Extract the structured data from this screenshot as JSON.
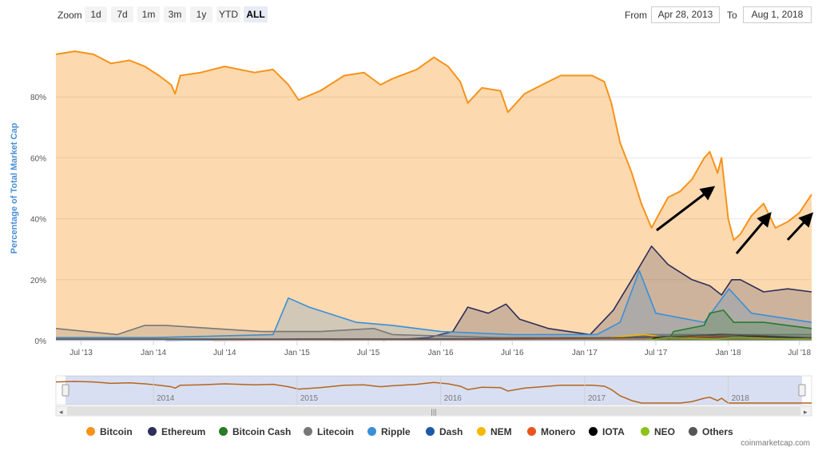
{
  "toolbar": {
    "zoom_label": "Zoom",
    "zoom_buttons": [
      "1d",
      "7d",
      "1m",
      "3m",
      "1y",
      "YTD",
      "ALL"
    ],
    "active_zoom": "ALL",
    "from_label": "From",
    "from_value": "Apr 28, 2013",
    "to_label": "To",
    "to_value": "Aug 1, 2018"
  },
  "credits": "coinmarketcap.com",
  "colors": {
    "Bitcoin": "#f7931a",
    "Ethereum": "#2e2e5a",
    "Bitcoin Cash": "#2a7a2a",
    "Litecoin": "#777777",
    "Ripple": "#3a8fd6",
    "Dash": "#1c5aa6",
    "NEM": "#f5b800",
    "Monero": "#e8541c",
    "IOTA": "#000000",
    "NEO": "#8ac41a",
    "Others": "#555555"
  },
  "chart_data": {
    "type": "area",
    "title": "",
    "xlabel": "",
    "ylabel": "Percentage of Total Market Cap",
    "ylim": [
      0,
      100
    ],
    "y_ticks": [
      "0%",
      "20%",
      "40%",
      "60%",
      "80%"
    ],
    "x_ticks": [
      "Jul '13",
      "Jan '14",
      "Jul '14",
      "Jan '15",
      "Jul '15",
      "Jan '16",
      "Jul '16",
      "Jan '17",
      "Jul '17",
      "Jan '18",
      "Jul '18"
    ],
    "x_range": [
      "2013-04-28",
      "2018-08-01"
    ],
    "grid": true,
    "legend_position": "bottom",
    "series": [
      {
        "name": "Bitcoin",
        "points": [
          [
            "2013-04-28",
            94
          ],
          [
            "2013-06-15",
            95
          ],
          [
            "2013-08-01",
            94
          ],
          [
            "2013-09-15",
            91
          ],
          [
            "2013-11-01",
            92
          ],
          [
            "2013-12-10",
            90
          ],
          [
            "2014-01-15",
            87
          ],
          [
            "2014-02-15",
            84
          ],
          [
            "2014-02-25",
            81
          ],
          [
            "2014-03-10",
            87
          ],
          [
            "2014-05-01",
            88
          ],
          [
            "2014-07-01",
            90
          ],
          [
            "2014-09-15",
            88
          ],
          [
            "2014-11-01",
            89
          ],
          [
            "2014-12-10",
            84
          ],
          [
            "2015-01-05",
            79
          ],
          [
            "2015-03-01",
            82
          ],
          [
            "2015-05-01",
            87
          ],
          [
            "2015-06-20",
            88
          ],
          [
            "2015-08-01",
            84
          ],
          [
            "2015-09-01",
            86
          ],
          [
            "2015-11-01",
            89
          ],
          [
            "2015-12-15",
            93
          ],
          [
            "2016-01-20",
            90
          ],
          [
            "2016-02-20",
            85
          ],
          [
            "2016-03-10",
            78
          ],
          [
            "2016-04-15",
            83
          ],
          [
            "2016-06-01",
            82
          ],
          [
            "2016-06-20",
            75
          ],
          [
            "2016-08-01",
            81
          ],
          [
            "2016-09-15",
            84
          ],
          [
            "2016-11-01",
            87
          ],
          [
            "2016-12-15",
            87
          ],
          [
            "2017-01-20",
            87
          ],
          [
            "2017-02-20",
            85
          ],
          [
            "2017-03-10",
            78
          ],
          [
            "2017-04-01",
            65
          ],
          [
            "2017-05-01",
            55
          ],
          [
            "2017-05-25",
            45
          ],
          [
            "2017-06-20",
            37
          ],
          [
            "2017-07-15",
            43
          ],
          [
            "2017-08-01",
            47
          ],
          [
            "2017-09-01",
            49
          ],
          [
            "2017-10-01",
            53
          ],
          [
            "2017-11-01",
            60
          ],
          [
            "2017-11-15",
            62
          ],
          [
            "2017-12-05",
            55
          ],
          [
            "2017-12-15",
            60
          ],
          [
            "2018-01-01",
            40
          ],
          [
            "2018-01-15",
            33
          ],
          [
            "2018-02-01",
            35
          ],
          [
            "2018-03-01",
            41
          ],
          [
            "2018-04-01",
            45
          ],
          [
            "2018-05-01",
            37
          ],
          [
            "2018-06-01",
            39
          ],
          [
            "2018-07-01",
            42
          ],
          [
            "2018-08-01",
            48
          ]
        ]
      },
      {
        "name": "Ethereum",
        "points": [
          [
            "2015-08-07",
            0
          ],
          [
            "2015-12-01",
            1
          ],
          [
            "2016-02-01",
            3
          ],
          [
            "2016-03-10",
            11
          ],
          [
            "2016-05-01",
            9
          ],
          [
            "2016-06-15",
            12
          ],
          [
            "2016-07-20",
            7
          ],
          [
            "2016-10-01",
            4
          ],
          [
            "2017-01-15",
            2
          ],
          [
            "2017-03-15",
            10
          ],
          [
            "2017-05-01",
            20
          ],
          [
            "2017-06-20",
            31
          ],
          [
            "2017-08-01",
            25
          ],
          [
            "2017-10-01",
            20
          ],
          [
            "2017-11-15",
            18
          ],
          [
            "2017-12-15",
            15
          ],
          [
            "2018-01-10",
            20
          ],
          [
            "2018-02-01",
            20
          ],
          [
            "2018-04-01",
            16
          ],
          [
            "2018-06-01",
            17
          ],
          [
            "2018-08-01",
            16
          ]
        ]
      },
      {
        "name": "Ripple",
        "points": [
          [
            "2013-04-28",
            1
          ],
          [
            "2014-01-01",
            1
          ],
          [
            "2014-11-01",
            2
          ],
          [
            "2014-12-10",
            14
          ],
          [
            "2015-02-01",
            11
          ],
          [
            "2015-06-01",
            6
          ],
          [
            "2015-09-01",
            5
          ],
          [
            "2016-01-01",
            3
          ],
          [
            "2016-07-01",
            2
          ],
          [
            "2017-02-01",
            2
          ],
          [
            "2017-04-01",
            6
          ],
          [
            "2017-05-20",
            23
          ],
          [
            "2017-07-01",
            9
          ],
          [
            "2017-11-01",
            6
          ],
          [
            "2018-01-03",
            17
          ],
          [
            "2018-03-01",
            9
          ],
          [
            "2018-08-01",
            6
          ]
        ]
      },
      {
        "name": "Litecoin",
        "points": [
          [
            "2013-04-28",
            4
          ],
          [
            "2013-10-01",
            2
          ],
          [
            "2013-12-10",
            5
          ],
          [
            "2014-02-01",
            5
          ],
          [
            "2014-06-01",
            4
          ],
          [
            "2014-10-01",
            3
          ],
          [
            "2015-03-01",
            3
          ],
          [
            "2015-07-15",
            4
          ],
          [
            "2015-09-01",
            2
          ],
          [
            "2016-06-01",
            1
          ],
          [
            "2017-04-01",
            1
          ],
          [
            "2017-06-01",
            2
          ],
          [
            "2017-12-15",
            2
          ],
          [
            "2018-08-01",
            2
          ]
        ]
      },
      {
        "name": "Bitcoin Cash",
        "points": [
          [
            "2017-08-01",
            0
          ],
          [
            "2017-08-15",
            3
          ],
          [
            "2017-11-01",
            5
          ],
          [
            "2017-11-15",
            9
          ],
          [
            "2017-12-20",
            10
          ],
          [
            "2018-01-15",
            6
          ],
          [
            "2018-04-01",
            6
          ],
          [
            "2018-08-01",
            4
          ]
        ]
      },
      {
        "name": "Dash",
        "points": [
          [
            "2014-02-01",
            0
          ],
          [
            "2015-01-01",
            0.5
          ],
          [
            "2016-01-01",
            0.5
          ],
          [
            "2017-03-01",
            1
          ],
          [
            "2017-06-01",
            1.5
          ],
          [
            "2018-08-01",
            1
          ]
        ]
      },
      {
        "name": "NEM",
        "points": [
          [
            "2015-04-01",
            0
          ],
          [
            "2017-03-01",
            1
          ],
          [
            "2017-06-01",
            2
          ],
          [
            "2017-08-01",
            1
          ],
          [
            "2018-01-10",
            2
          ],
          [
            "2018-08-01",
            0.5
          ]
        ]
      },
      {
        "name": "Monero",
        "points": [
          [
            "2014-06-01",
            0
          ],
          [
            "2016-08-01",
            0.5
          ],
          [
            "2017-05-01",
            1
          ],
          [
            "2018-08-01",
            1
          ]
        ]
      },
      {
        "name": "IOTA",
        "points": [
          [
            "2017-06-15",
            0
          ],
          [
            "2017-07-01",
            1
          ],
          [
            "2017-12-10",
            2
          ],
          [
            "2018-01-05",
            2
          ],
          [
            "2018-08-01",
            0.5
          ]
        ]
      },
      {
        "name": "NEO",
        "points": [
          [
            "2017-06-01",
            0
          ],
          [
            "2017-08-01",
            1
          ],
          [
            "2017-12-01",
            0.5
          ],
          [
            "2018-01-15",
            1
          ],
          [
            "2018-08-01",
            0.5
          ]
        ]
      },
      {
        "name": "Others",
        "points": [
          [
            "2013-04-28",
            0.5
          ],
          [
            "2016-01-01",
            0.5
          ],
          [
            "2017-05-01",
            1
          ],
          [
            "2018-01-10",
            2
          ],
          [
            "2018-08-01",
            1
          ]
        ]
      }
    ],
    "navigator_ticks": [
      "2014",
      "2015",
      "2016",
      "2017",
      "2018"
    ]
  },
  "legend": [
    "Bitcoin",
    "Ethereum",
    "Bitcoin Cash",
    "Litecoin",
    "Ripple",
    "Dash",
    "NEM",
    "Monero",
    "IOTA",
    "NEO",
    "Others"
  ]
}
